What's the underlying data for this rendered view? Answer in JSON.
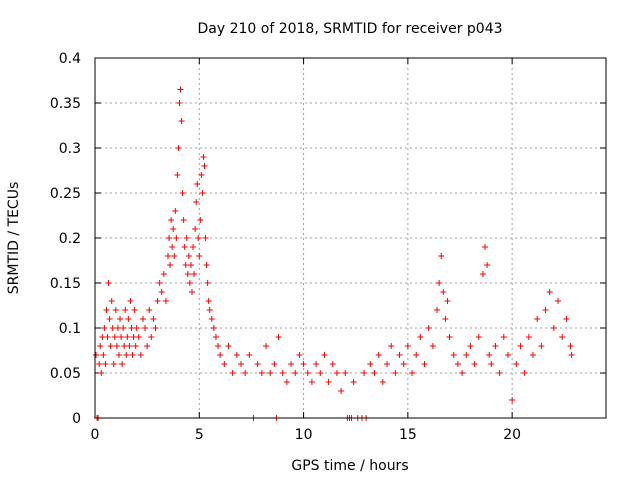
{
  "chart_data": {
    "type": "scatter",
    "title": "Day 210 of 2018, SRMTID for receiver p043",
    "xlabel": "GPS time / hours",
    "ylabel": "SRMTID / TECUs",
    "xlim": [
      0,
      24.5
    ],
    "ylim": [
      0,
      0.4
    ],
    "grid": true,
    "marker": "+",
    "color": "#ff0000",
    "x_ticks": [
      0,
      5,
      10,
      15,
      20
    ],
    "x_tick_labels": [
      "0",
      "5",
      "10",
      "15",
      "20"
    ],
    "y_ticks": [
      0,
      0.05,
      0.1,
      0.15,
      0.2,
      0.25,
      0.3,
      0.35,
      0.4
    ],
    "y_tick_labels": [
      "0",
      "0.05",
      "0.1",
      "0.15",
      "0.2",
      "0.25",
      "0.3",
      "0.35",
      "0.4"
    ],
    "series": [
      {
        "name": "SRMTID",
        "points": [
          [
            0.05,
            0.07
          ],
          [
            0.1,
            0.0
          ],
          [
            0.15,
            0.0
          ],
          [
            0.2,
            0.06
          ],
          [
            0.25,
            0.08
          ],
          [
            0.3,
            0.05
          ],
          [
            0.35,
            0.09
          ],
          [
            0.4,
            0.07
          ],
          [
            0.45,
            0.1
          ],
          [
            0.5,
            0.06
          ],
          [
            0.55,
            0.12
          ],
          [
            0.6,
            0.09
          ],
          [
            0.65,
            0.15
          ],
          [
            0.7,
            0.11
          ],
          [
            0.75,
            0.08
          ],
          [
            0.8,
            0.13
          ],
          [
            0.85,
            0.1
          ],
          [
            0.9,
            0.06
          ],
          [
            0.95,
            0.09
          ],
          [
            1.0,
            0.12
          ],
          [
            1.05,
            0.08
          ],
          [
            1.1,
            0.1
          ],
          [
            1.15,
            0.07
          ],
          [
            1.2,
            0.11
          ],
          [
            1.25,
            0.09
          ],
          [
            1.3,
            0.06
          ],
          [
            1.35,
            0.1
          ],
          [
            1.4,
            0.08
          ],
          [
            1.45,
            0.12
          ],
          [
            1.5,
            0.07
          ],
          [
            1.55,
            0.09
          ],
          [
            1.6,
            0.11
          ],
          [
            1.65,
            0.08
          ],
          [
            1.7,
            0.13
          ],
          [
            1.75,
            0.1
          ],
          [
            1.8,
            0.07
          ],
          [
            1.85,
            0.09
          ],
          [
            1.9,
            0.12
          ],
          [
            1.95,
            0.08
          ],
          [
            2.0,
            0.1
          ],
          [
            2.1,
            0.09
          ],
          [
            2.2,
            0.07
          ],
          [
            2.3,
            0.11
          ],
          [
            2.4,
            0.1
          ],
          [
            2.5,
            0.08
          ],
          [
            2.6,
            0.12
          ],
          [
            2.7,
            0.09
          ],
          [
            2.8,
            0.11
          ],
          [
            2.9,
            0.1
          ],
          [
            3.0,
            0.13
          ],
          [
            3.1,
            0.15
          ],
          [
            3.2,
            0.14
          ],
          [
            3.3,
            0.16
          ],
          [
            3.4,
            0.13
          ],
          [
            3.5,
            0.18
          ],
          [
            3.55,
            0.2
          ],
          [
            3.6,
            0.17
          ],
          [
            3.65,
            0.22
          ],
          [
            3.7,
            0.19
          ],
          [
            3.75,
            0.21
          ],
          [
            3.8,
            0.18
          ],
          [
            3.85,
            0.23
          ],
          [
            3.9,
            0.2
          ],
          [
            3.95,
            0.27
          ],
          [
            4.0,
            0.3
          ],
          [
            4.05,
            0.35
          ],
          [
            4.1,
            0.365
          ],
          [
            4.15,
            0.33
          ],
          [
            4.2,
            0.25
          ],
          [
            4.25,
            0.22
          ],
          [
            4.3,
            0.19
          ],
          [
            4.35,
            0.17
          ],
          [
            4.4,
            0.2
          ],
          [
            4.45,
            0.16
          ],
          [
            4.5,
            0.18
          ],
          [
            4.55,
            0.15
          ],
          [
            4.6,
            0.17
          ],
          [
            4.65,
            0.14
          ],
          [
            4.7,
            0.19
          ],
          [
            4.75,
            0.16
          ],
          [
            4.8,
            0.21
          ],
          [
            4.85,
            0.24
          ],
          [
            4.9,
            0.26
          ],
          [
            4.95,
            0.2
          ],
          [
            5.0,
            0.18
          ],
          [
            5.05,
            0.22
          ],
          [
            5.1,
            0.27
          ],
          [
            5.15,
            0.25
          ],
          [
            5.2,
            0.29
          ],
          [
            5.25,
            0.28
          ],
          [
            5.3,
            0.2
          ],
          [
            5.35,
            0.17
          ],
          [
            5.4,
            0.15
          ],
          [
            5.45,
            0.13
          ],
          [
            5.5,
            0.12
          ],
          [
            5.6,
            0.11
          ],
          [
            5.7,
            0.1
          ],
          [
            5.8,
            0.09
          ],
          [
            5.9,
            0.08
          ],
          [
            6.0,
            0.07
          ],
          [
            6.2,
            0.06
          ],
          [
            6.4,
            0.08
          ],
          [
            6.6,
            0.05
          ],
          [
            6.8,
            0.07
          ],
          [
            7.0,
            0.06
          ],
          [
            7.2,
            0.05
          ],
          [
            7.4,
            0.07
          ],
          [
            7.6,
            0.0
          ],
          [
            7.8,
            0.06
          ],
          [
            8.0,
            0.05
          ],
          [
            8.2,
            0.08
          ],
          [
            8.4,
            0.05
          ],
          [
            8.6,
            0.06
          ],
          [
            8.7,
            0.0
          ],
          [
            8.8,
            0.09
          ],
          [
            9.0,
            0.05
          ],
          [
            9.2,
            0.04
          ],
          [
            9.4,
            0.06
          ],
          [
            9.6,
            0.05
          ],
          [
            9.8,
            0.07
          ],
          [
            10.0,
            0.06
          ],
          [
            10.2,
            0.05
          ],
          [
            10.4,
            0.04
          ],
          [
            10.6,
            0.06
          ],
          [
            10.8,
            0.05
          ],
          [
            11.0,
            0.07
          ],
          [
            11.2,
            0.04
          ],
          [
            11.4,
            0.06
          ],
          [
            11.6,
            0.05
          ],
          [
            11.8,
            0.03
          ],
          [
            12.0,
            0.05
          ],
          [
            12.1,
            0.0
          ],
          [
            12.2,
            0.0
          ],
          [
            12.3,
            0.0
          ],
          [
            12.4,
            0.04
          ],
          [
            12.6,
            0.0
          ],
          [
            12.8,
            0.0
          ],
          [
            12.9,
            0.05
          ],
          [
            13.0,
            0.0
          ],
          [
            13.2,
            0.06
          ],
          [
            13.4,
            0.05
          ],
          [
            13.6,
            0.07
          ],
          [
            13.8,
            0.04
          ],
          [
            14.0,
            0.06
          ],
          [
            14.2,
            0.08
          ],
          [
            14.4,
            0.05
          ],
          [
            14.6,
            0.07
          ],
          [
            14.8,
            0.06
          ],
          [
            15.0,
            0.08
          ],
          [
            15.2,
            0.05
          ],
          [
            15.4,
            0.07
          ],
          [
            15.6,
            0.09
          ],
          [
            15.8,
            0.06
          ],
          [
            16.0,
            0.1
          ],
          [
            16.2,
            0.08
          ],
          [
            16.4,
            0.12
          ],
          [
            16.5,
            0.15
          ],
          [
            16.6,
            0.18
          ],
          [
            16.7,
            0.14
          ],
          [
            16.8,
            0.11
          ],
          [
            16.9,
            0.13
          ],
          [
            17.0,
            0.09
          ],
          [
            17.2,
            0.07
          ],
          [
            17.4,
            0.06
          ],
          [
            17.6,
            0.05
          ],
          [
            17.8,
            0.07
          ],
          [
            18.0,
            0.08
          ],
          [
            18.2,
            0.06
          ],
          [
            18.4,
            0.09
          ],
          [
            18.6,
            0.16
          ],
          [
            18.7,
            0.19
          ],
          [
            18.8,
            0.17
          ],
          [
            18.9,
            0.07
          ],
          [
            19.0,
            0.06
          ],
          [
            19.2,
            0.08
          ],
          [
            19.4,
            0.05
          ],
          [
            19.6,
            0.09
          ],
          [
            19.8,
            0.07
          ],
          [
            20.0,
            0.02
          ],
          [
            20.2,
            0.06
          ],
          [
            20.4,
            0.08
          ],
          [
            20.6,
            0.05
          ],
          [
            20.8,
            0.09
          ],
          [
            21.0,
            0.07
          ],
          [
            21.2,
            0.11
          ],
          [
            21.4,
            0.08
          ],
          [
            21.6,
            0.12
          ],
          [
            21.8,
            0.14
          ],
          [
            22.0,
            0.1
          ],
          [
            22.2,
            0.13
          ],
          [
            22.4,
            0.09
          ],
          [
            22.6,
            0.11
          ],
          [
            22.8,
            0.08
          ],
          [
            22.85,
            0.07
          ]
        ]
      }
    ]
  }
}
